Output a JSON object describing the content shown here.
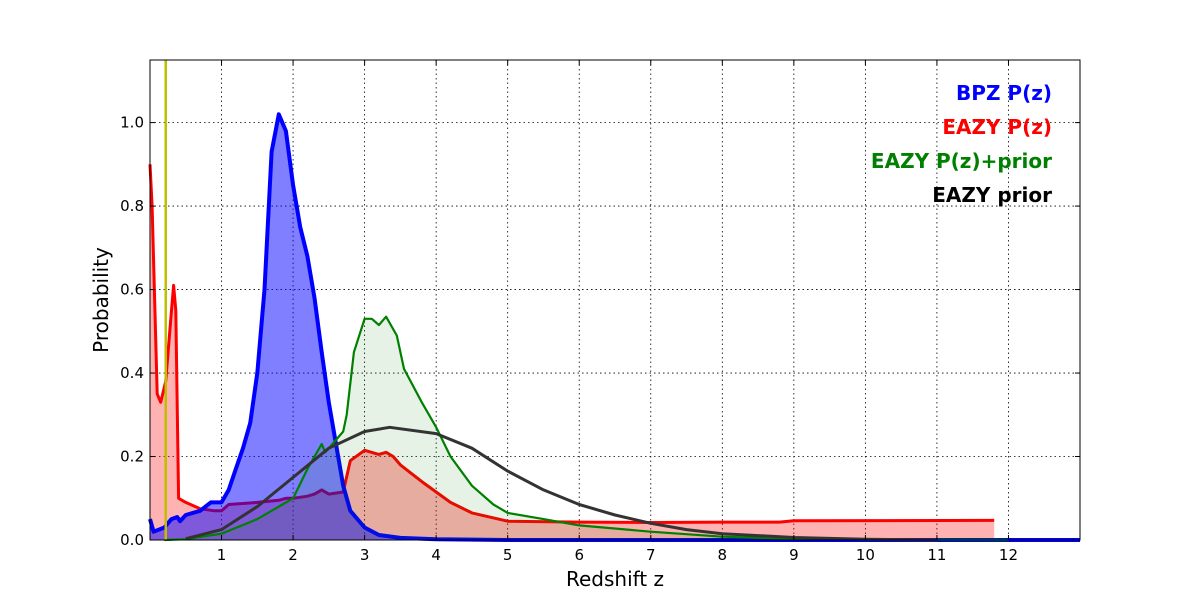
{
  "chart_data": {
    "type": "area",
    "title": "",
    "xlabel": "Redshift z",
    "ylabel": "Probability",
    "xlim": [
      0,
      13
    ],
    "ylim": [
      0,
      1.15
    ],
    "grid": true,
    "legend_placement": "top-right",
    "xticks": [
      1,
      2,
      3,
      4,
      5,
      6,
      7,
      8,
      9,
      10,
      11,
      12
    ],
    "xtick_labels": [
      "1",
      "2",
      "3",
      "4",
      "5",
      "6",
      "7",
      "8",
      "9",
      "10",
      "11",
      "12"
    ],
    "yticks": [
      0,
      0.2,
      0.4,
      0.6,
      0.8,
      1.0
    ],
    "ytick_labels": [
      "0.0",
      "0.2",
      "0.4",
      "0.6",
      "0.8",
      "1.0"
    ],
    "vline": {
      "x": 0.22,
      "color": "#bfbf00"
    },
    "series": [
      {
        "name": "EAZY P(z)",
        "color": "#ff0000",
        "fill": "#ff0000",
        "fill_opacity": 0.3,
        "x": [
          0,
          0.03,
          0.1,
          0.15,
          0.22,
          0.3,
          0.33,
          0.36,
          0.4,
          0.5,
          0.7,
          0.9,
          1.0,
          1.1,
          1.5,
          1.8,
          1.9,
          2.0,
          2.2,
          2.3,
          2.4,
          2.5,
          2.7,
          2.8,
          3.0,
          3.2,
          3.3,
          3.4,
          3.5,
          3.8,
          4.2,
          4.5,
          5,
          6,
          7,
          8,
          8.8,
          9,
          11.8
        ],
        "y": [
          0.9,
          0.8,
          0.35,
          0.33,
          0.38,
          0.55,
          0.61,
          0.55,
          0.1,
          0.09,
          0.075,
          0.07,
          0.07,
          0.085,
          0.09,
          0.095,
          0.1,
          0.1,
          0.105,
          0.11,
          0.12,
          0.11,
          0.115,
          0.19,
          0.215,
          0.205,
          0.21,
          0.2,
          0.18,
          0.14,
          0.09,
          0.065,
          0.045,
          0.043,
          0.042,
          0.043,
          0.043,
          0.046,
          0.047
        ]
      },
      {
        "name": "BPZ P(z)",
        "color": "#0000ff",
        "fill": "#0000ff",
        "fill_opacity": 0.5,
        "x": [
          0,
          0.05,
          0.2,
          0.3,
          0.38,
          0.42,
          0.5,
          0.7,
          0.85,
          1.0,
          1.1,
          1.2,
          1.3,
          1.4,
          1.5,
          1.6,
          1.7,
          1.8,
          1.9,
          2.0,
          2.1,
          2.2,
          2.3,
          2.4,
          2.5,
          2.6,
          2.7,
          2.8,
          3.0,
          3.2,
          3.5,
          4,
          5,
          13
        ],
        "y": [
          0.05,
          0.02,
          0.03,
          0.05,
          0.055,
          0.045,
          0.06,
          0.07,
          0.09,
          0.09,
          0.12,
          0.17,
          0.22,
          0.28,
          0.4,
          0.6,
          0.93,
          1.02,
          0.98,
          0.85,
          0.75,
          0.68,
          0.58,
          0.45,
          0.33,
          0.23,
          0.13,
          0.07,
          0.03,
          0.012,
          0.005,
          0.002,
          0,
          0
        ]
      },
      {
        "name": "EAZY P(z)+prior",
        "color": "#008000",
        "fill": "#008000",
        "fill_opacity": 0.1,
        "x": [
          0.2,
          0.5,
          1,
          1.5,
          2.0,
          2.2,
          2.4,
          2.45,
          2.7,
          2.75,
          2.85,
          3.0,
          3.1,
          3.2,
          3.3,
          3.45,
          3.55,
          3.8,
          4.0,
          4.2,
          4.5,
          4.8,
          5.0,
          5.5,
          6,
          7,
          8,
          9,
          10,
          12
        ],
        "y": [
          0,
          0.002,
          0.015,
          0.05,
          0.1,
          0.17,
          0.23,
          0.21,
          0.26,
          0.3,
          0.45,
          0.53,
          0.53,
          0.515,
          0.535,
          0.49,
          0.41,
          0.33,
          0.27,
          0.2,
          0.13,
          0.085,
          0.065,
          0.05,
          0.035,
          0.02,
          0.008,
          0.003,
          0.001,
          0
        ]
      },
      {
        "name": "EAZY prior",
        "color": "#333333",
        "fill": null,
        "fill_opacity": 0,
        "x": [
          0.5,
          1,
          1.5,
          2,
          2.5,
          3,
          3.35,
          4,
          4.5,
          5,
          5.5,
          6,
          6.5,
          7,
          7.5,
          8,
          9,
          10,
          11
        ],
        "y": [
          0.003,
          0.025,
          0.08,
          0.15,
          0.22,
          0.26,
          0.27,
          0.255,
          0.22,
          0.165,
          0.12,
          0.085,
          0.06,
          0.04,
          0.025,
          0.015,
          0.006,
          0.002,
          0
        ]
      }
    ],
    "legend": [
      {
        "label": "BPZ P(z)",
        "color": "#0000ff"
      },
      {
        "label": "EAZY P(z)",
        "color": "#ff0000"
      },
      {
        "label": "EAZY P(z)+prior",
        "color": "#008000"
      },
      {
        "label": "EAZY prior",
        "color": "#000000"
      }
    ]
  }
}
